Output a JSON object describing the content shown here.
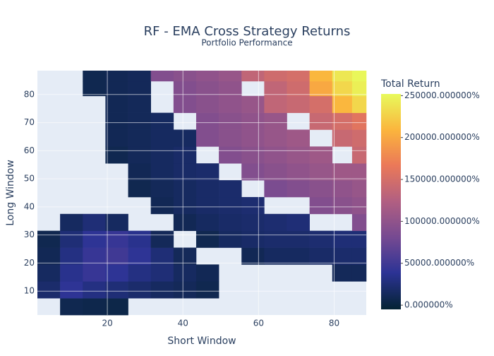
{
  "chart_data": {
    "type": "heatmap",
    "title": "RF - EMA Cross Strategy Returns",
    "subtitle": "Portfolio Performance",
    "x_label": "Short Window",
    "y_label": "Long Window",
    "colorbar_title": "Total Return",
    "x": [
      4.5,
      10.5,
      16.5,
      22.5,
      28.5,
      34.5,
      40.5,
      46.5,
      52.5,
      58.5,
      64.5,
      70.5,
      76.5,
      82.5,
      87
    ],
    "y": [
      4.5,
      10.5,
      16.5,
      22.5,
      28.5,
      34.5,
      40.5,
      46.5,
      52.5,
      58.5,
      64.5,
      70.5,
      76.5,
      82.5,
      87
    ],
    "z": [
      [
        null,
        8000,
        6000,
        5000,
        null,
        null,
        null,
        null,
        null,
        null,
        null,
        null,
        null,
        null,
        null
      ],
      [
        20000,
        40000,
        30000,
        25000,
        20000,
        15000,
        12000,
        8000,
        null,
        null,
        null,
        null,
        null,
        null,
        null
      ],
      [
        15000,
        35000,
        45000,
        40000,
        30000,
        25000,
        15000,
        10000,
        null,
        null,
        null,
        null,
        null,
        12000,
        12000
      ],
      [
        10000,
        30000,
        45000,
        50000,
        40000,
        25000,
        12000,
        null,
        null,
        10000,
        15000,
        15000,
        18000,
        20000,
        20000
      ],
      [
        8000,
        25000,
        40000,
        45000,
        35000,
        12000,
        null,
        8000,
        15000,
        18000,
        20000,
        20000,
        22000,
        25000,
        25000
      ],
      [
        null,
        15000,
        25000,
        15000,
        null,
        null,
        10000,
        15000,
        18000,
        20000,
        22000,
        25000,
        null,
        null,
        90000
      ],
      [
        null,
        null,
        null,
        null,
        null,
        10000,
        15000,
        18000,
        20000,
        22000,
        null,
        null,
        90000,
        95000,
        100000
      ],
      [
        null,
        null,
        null,
        null,
        8000,
        12000,
        15000,
        18000,
        20000,
        null,
        85000,
        90000,
        95000,
        100000,
        105000
      ],
      [
        null,
        null,
        null,
        null,
        10000,
        15000,
        18000,
        20000,
        null,
        90000,
        95000,
        100000,
        105000,
        110000,
        110000
      ],
      [
        null,
        null,
        null,
        8000,
        12000,
        15000,
        18000,
        null,
        90000,
        95000,
        100000,
        105000,
        110000,
        null,
        140000
      ],
      [
        null,
        null,
        null,
        10000,
        12000,
        15000,
        15000,
        90000,
        95000,
        100000,
        105000,
        110000,
        null,
        140000,
        145000
      ],
      [
        null,
        null,
        null,
        10000,
        12000,
        15000,
        null,
        90000,
        95000,
        100000,
        105000,
        null,
        140000,
        150000,
        160000
      ],
      [
        null,
        null,
        null,
        10000,
        12000,
        null,
        90000,
        95000,
        100000,
        105000,
        135000,
        140000,
        150000,
        210000,
        230000
      ],
      [
        null,
        null,
        8000,
        10000,
        12000,
        null,
        90000,
        95000,
        100000,
        null,
        135000,
        145000,
        200000,
        230000,
        245000
      ],
      [
        null,
        null,
        8000,
        10000,
        12000,
        90000,
        95000,
        100000,
        105000,
        135000,
        145000,
        150000,
        210000,
        240000,
        250000
      ]
    ],
    "xlim": [
      1.5,
      88.5
    ],
    "ylim": [
      1.5,
      88.5
    ],
    "xticks": [
      20,
      40,
      60,
      80
    ],
    "yticks": [
      10,
      20,
      30,
      40,
      50,
      60,
      70,
      80
    ],
    "zlim": [
      -5000,
      252000
    ],
    "zticks": [
      {
        "value": 0,
        "label": "0.000000%"
      },
      {
        "value": 50000,
        "label": "50000.000000%"
      },
      {
        "value": 100000,
        "label": "100000.000000%"
      },
      {
        "value": 150000,
        "label": "150000.000000%"
      },
      {
        "value": 200000,
        "label": "200000.000000%"
      },
      {
        "value": 250000,
        "label": "250000.000000%"
      }
    ],
    "colorscale": [
      [
        0,
        "#042333"
      ],
      [
        0.17,
        "#2c3395"
      ],
      [
        0.33,
        "#744992"
      ],
      [
        0.5,
        "#b15f82"
      ],
      [
        0.67,
        "#eb7958"
      ],
      [
        0.83,
        "#fbb43d"
      ],
      [
        1,
        "#e8fa5b"
      ]
    ],
    "grid": true
  }
}
